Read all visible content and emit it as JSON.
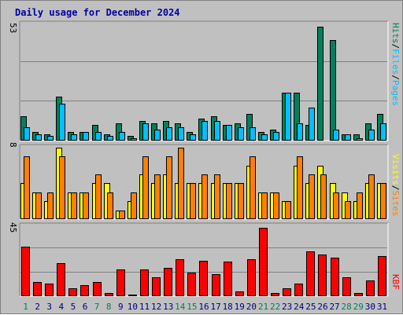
{
  "title": "Daily usage for December 2024",
  "colors": {
    "hits": "#00805c",
    "files": "#00c0ff",
    "sites": "#ff8000",
    "visits": "#ffff00",
    "kbytes": "#ff0000",
    "weekend_day": "#00805c",
    "weekday": "#000080"
  },
  "chart_data": [
    {
      "type": "bar",
      "panel": "hits-files",
      "y_max_label": "53",
      "legend": [
        "Hits",
        "/",
        "Files",
        "/",
        "Pages"
      ],
      "ylim": [
        0,
        53
      ],
      "categories": [
        "1",
        "2",
        "3",
        "4",
        "5",
        "6",
        "7",
        "8",
        "9",
        "10",
        "11",
        "12",
        "13",
        "14",
        "15",
        "16",
        "17",
        "18",
        "19",
        "20",
        "21",
        "22",
        "23",
        "24",
        "25",
        "26",
        "27",
        "28",
        "29",
        "30",
        "31"
      ],
      "series": [
        {
          "name": "Hits",
          "values": [
            11,
            4,
            3,
            20,
            4,
            4,
            7,
            3,
            8,
            2,
            9,
            8,
            9,
            8,
            4,
            10,
            11,
            7,
            8,
            12,
            4,
            5,
            22,
            22,
            7,
            52,
            46,
            3,
            3,
            8,
            12
          ]
        },
        {
          "name": "Files",
          "values": [
            6,
            3,
            2,
            17,
            3,
            4,
            4,
            2,
            4,
            1,
            8,
            5,
            6,
            6,
            3,
            9,
            9,
            7,
            6,
            6,
            3,
            4,
            22,
            8,
            15,
            0,
            5,
            3,
            1,
            5,
            8
          ]
        },
        {
          "name": "Pages",
          "values": [
            0,
            0,
            0,
            0,
            0,
            0,
            0,
            0,
            0,
            0,
            0,
            0,
            0,
            0,
            0,
            0,
            0,
            0,
            0,
            0,
            0,
            0,
            0,
            0,
            0,
            0,
            0,
            0,
            0,
            0,
            0
          ]
        }
      ]
    },
    {
      "type": "bar",
      "panel": "sites-visits",
      "y_max_label": "8",
      "legend": [
        "Visits",
        "/",
        "Sites"
      ],
      "ylim": [
        0,
        8
      ],
      "categories": [
        "1",
        "2",
        "3",
        "4",
        "5",
        "6",
        "7",
        "8",
        "9",
        "10",
        "11",
        "12",
        "13",
        "14",
        "15",
        "16",
        "17",
        "18",
        "19",
        "20",
        "21",
        "22",
        "23",
        "24",
        "25",
        "26",
        "27",
        "28",
        "29",
        "30",
        "31"
      ],
      "series": [
        {
          "name": "Visits",
          "values": [
            4,
            3,
            2,
            8,
            3,
            3,
            4,
            4,
            1,
            2,
            5,
            4,
            5,
            4,
            4,
            4,
            4,
            4,
            4,
            6,
            3,
            3,
            2,
            6,
            4,
            6,
            4,
            3,
            2,
            4,
            4
          ]
        },
        {
          "name": "Sites",
          "values": [
            7,
            3,
            3,
            7,
            3,
            3,
            5,
            3,
            1,
            3,
            7,
            5,
            7,
            8,
            4,
            5,
            5,
            4,
            4,
            7,
            3,
            3,
            2,
            7,
            5,
            5,
            3,
            2,
            3,
            5,
            4
          ]
        }
      ]
    },
    {
      "type": "bar",
      "panel": "kbytes",
      "y_max_label": "45",
      "legend": [
        "KB",
        "F"
      ],
      "ylim": [
        0,
        45
      ],
      "categories": [
        "1",
        "2",
        "3",
        "4",
        "5",
        "6",
        "7",
        "8",
        "9",
        "10",
        "11",
        "12",
        "13",
        "14",
        "15",
        "16",
        "17",
        "18",
        "19",
        "20",
        "21",
        "22",
        "23",
        "24",
        "25",
        "26",
        "27",
        "28",
        "29",
        "30",
        "31"
      ],
      "series": [
        {
          "name": "KB F",
          "values": [
            32,
            9,
            8,
            21,
            5,
            7,
            9,
            2,
            17,
            1,
            17,
            12,
            18,
            24,
            15,
            23,
            14,
            22,
            3,
            24,
            44,
            2,
            5,
            8,
            29,
            27,
            25,
            12,
            2,
            10,
            26
          ]
        }
      ]
    }
  ],
  "x_axis": {
    "labels": [
      "1",
      "2",
      "3",
      "4",
      "5",
      "6",
      "7",
      "8",
      "9",
      "10",
      "11",
      "12",
      "13",
      "14",
      "15",
      "16",
      "17",
      "18",
      "19",
      "20",
      "21",
      "22",
      "23",
      "24",
      "25",
      "26",
      "27",
      "28",
      "29",
      "30",
      "31"
    ],
    "weekend_days": [
      "1",
      "7",
      "8",
      "14",
      "15",
      "21",
      "22",
      "28",
      "29"
    ]
  }
}
